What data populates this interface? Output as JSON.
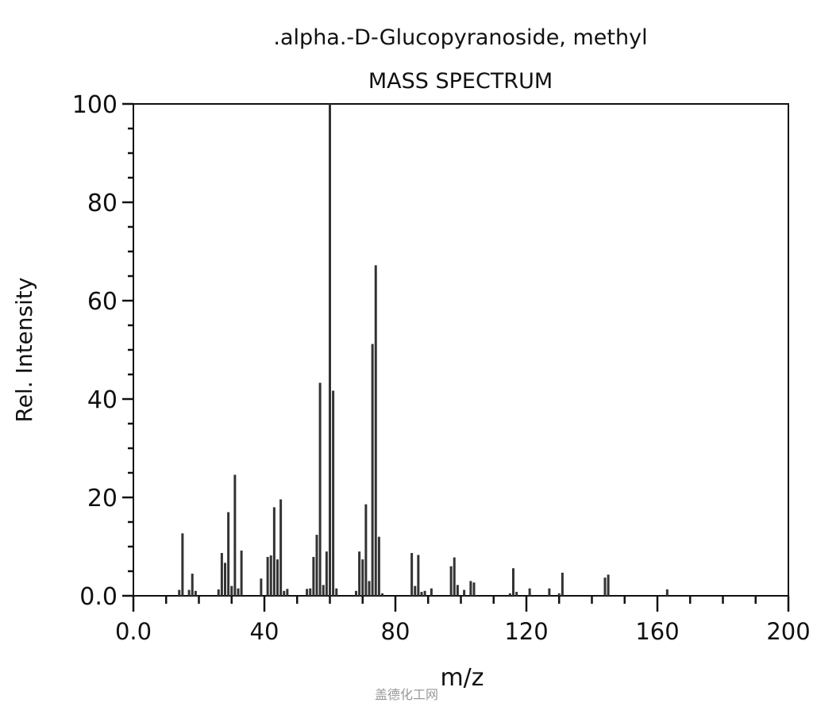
{
  "chart_data": {
    "type": "bar",
    "title": ".alpha.-D-Glucopyranoside, methyl",
    "subtitle": "MASS SPECTRUM",
    "xlabel": "m/z",
    "ylabel": "Rel. Intensity",
    "xlim": [
      0,
      200
    ],
    "ylim": [
      0,
      100
    ],
    "xticks": [
      "0.0",
      "40",
      "80",
      "120",
      "160",
      "200"
    ],
    "yticks": [
      "0.0",
      "20",
      "40",
      "60",
      "80",
      "100"
    ],
    "grid": false,
    "bar_color": "#333333",
    "peaks": [
      [
        14,
        1.2
      ],
      [
        15,
        12.7
      ],
      [
        17,
        1.2
      ],
      [
        18,
        4.5
      ],
      [
        19,
        1
      ],
      [
        26,
        1.3
      ],
      [
        27,
        8.7
      ],
      [
        28,
        6.7
      ],
      [
        29,
        17
      ],
      [
        30,
        2
      ],
      [
        31,
        24.6
      ],
      [
        32,
        1.5
      ],
      [
        33,
        9.2
      ],
      [
        39,
        3.5
      ],
      [
        41,
        7.9
      ],
      [
        42,
        8.2
      ],
      [
        43,
        18
      ],
      [
        44,
        7.4
      ],
      [
        45,
        19.6
      ],
      [
        46,
        1
      ],
      [
        47,
        1.4
      ],
      [
        53,
        1.4
      ],
      [
        54,
        1.5
      ],
      [
        55,
        7.9
      ],
      [
        56,
        12.4
      ],
      [
        57,
        43.3
      ],
      [
        58,
        2.2
      ],
      [
        59,
        9
      ],
      [
        60,
        100
      ],
      [
        61,
        41.7
      ],
      [
        62,
        1.5
      ],
      [
        68,
        1
      ],
      [
        69,
        9
      ],
      [
        70,
        7.4
      ],
      [
        71,
        18.6
      ],
      [
        72,
        3
      ],
      [
        73,
        51.2
      ],
      [
        74,
        67.2
      ],
      [
        75,
        12
      ],
      [
        76,
        0.5
      ],
      [
        85,
        8.7
      ],
      [
        86,
        2
      ],
      [
        87,
        8.3
      ],
      [
        88,
        0.8
      ],
      [
        89,
        1
      ],
      [
        91,
        1.5
      ],
      [
        97,
        6
      ],
      [
        98,
        7.8
      ],
      [
        99,
        2.2
      ],
      [
        101,
        1.2
      ],
      [
        103,
        3
      ],
      [
        104,
        2.7
      ],
      [
        115,
        0.5
      ],
      [
        116,
        5.6
      ],
      [
        117,
        0.8
      ],
      [
        121,
        1.5
      ],
      [
        127,
        1.5
      ],
      [
        130,
        0.5
      ],
      [
        131,
        4.7
      ],
      [
        144,
        3.7
      ],
      [
        145,
        4.3
      ],
      [
        163,
        1.3
      ]
    ]
  },
  "watermark": "盖德化工网"
}
